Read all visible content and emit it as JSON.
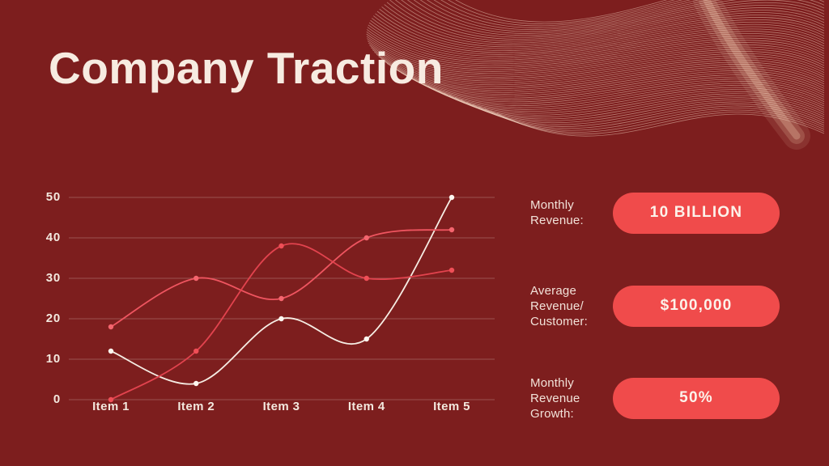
{
  "slide": {
    "title": "Company Traction",
    "background_color": "#7d1e1e",
    "accent_pill_color": "#f04b4b",
    "text_color": "#f7ebe1",
    "decoration": "line-wave-pattern-top-right"
  },
  "chart_data": {
    "type": "line",
    "title": "",
    "xlabel": "",
    "ylabel": "",
    "categories": [
      "Item 1",
      "Item 2",
      "Item 3",
      "Item 4",
      "Item 5"
    ],
    "series": [
      {
        "name": "cream-line",
        "color": "#f6ede4",
        "point_color": "#fdf7f0",
        "values": [
          12,
          4,
          20,
          15,
          50
        ]
      },
      {
        "name": "red-line-upper",
        "color": "#ef5560",
        "point_color": "#f4656e",
        "values": [
          18,
          30,
          25,
          40,
          42
        ]
      },
      {
        "name": "red-line-lower",
        "color": "#e2434e",
        "point_color": "#ef4f57",
        "values": [
          0,
          12,
          38,
          30,
          32
        ]
      }
    ],
    "ylim": [
      0,
      50
    ],
    "yticks": [
      0,
      10,
      20,
      30,
      40,
      50
    ],
    "grid": true,
    "gridline_color": "rgba(247,233,224,0.26)",
    "legend_position": "none"
  },
  "stats": [
    {
      "label": "Monthly\nRevenue:",
      "value": "10 BILLION"
    },
    {
      "label": "Average\nRevenue/\nCustomer:",
      "value": "$100,000"
    },
    {
      "label": "Monthly\nRevenue\nGrowth:",
      "value": "50%"
    }
  ]
}
